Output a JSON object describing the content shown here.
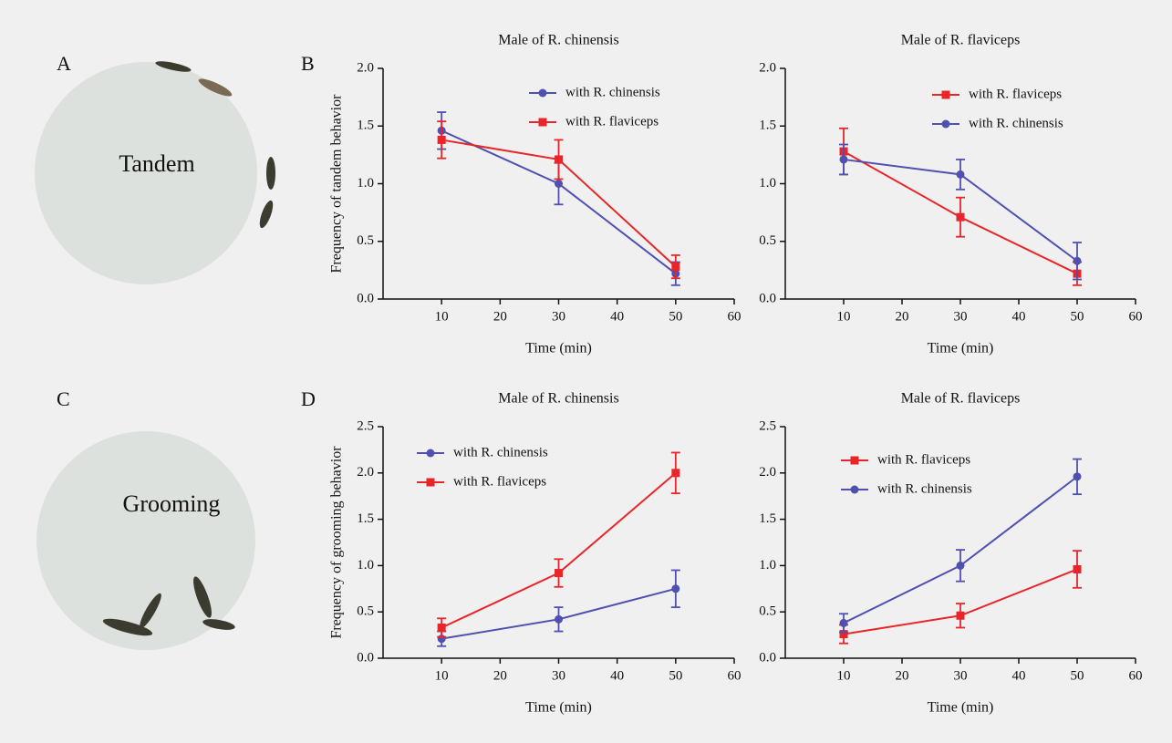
{
  "panels": {
    "labels": [
      "A",
      "B",
      "C",
      "D"
    ]
  },
  "photos": {
    "labels": [
      "Tandem",
      "Grooming"
    ]
  },
  "chart_data": [
    {
      "type": "line",
      "title": "Male of R. chinensis",
      "x_label": "Time (min)",
      "y_label": "Frequency of tandem behavior",
      "x": [
        10,
        30,
        50
      ],
      "xlim": [
        0,
        60
      ],
      "xticks": [
        10,
        20,
        30,
        40,
        50,
        60
      ],
      "ylim": [
        0,
        2
      ],
      "yticks": [
        {
          "value": 0,
          "label": "0.0"
        },
        0.5,
        {
          "value": 1,
          "label": "1.0"
        },
        1.5,
        {
          "value": 2,
          "label": "2.0"
        }
      ],
      "series": [
        {
          "name": "with R. chinensis",
          "color": "#4f50b0",
          "marker": "circle",
          "values": [
            1.46,
            1.0,
            0.22
          ],
          "errors": [
            0.16,
            0.18,
            0.1
          ]
        },
        {
          "name": "with R. flaviceps",
          "color": "#e8262a",
          "marker": "square",
          "values": [
            1.38,
            1.21,
            0.28
          ],
          "errors": [
            0.16,
            0.17,
            0.1
          ]
        }
      ]
    },
    {
      "type": "line",
      "title": "Male of R. flaviceps",
      "x_label": "Time (min)",
      "x": [
        10,
        30,
        50
      ],
      "xlim": [
        0,
        60
      ],
      "xticks": [
        10,
        20,
        30,
        40,
        50,
        60
      ],
      "ylim": [
        0,
        2
      ],
      "yticks": [
        {
          "value": 0,
          "label": "0.0"
        },
        0.5,
        {
          "value": 1,
          "label": "1.0"
        },
        1.5,
        {
          "value": 2,
          "label": "2.0"
        }
      ],
      "series": [
        {
          "name": "with R. flaviceps",
          "color": "#e8262a",
          "marker": "square",
          "values": [
            1.28,
            0.71,
            0.22
          ],
          "errors": [
            0.2,
            0.17,
            0.1
          ]
        },
        {
          "name": "with R. chinensis",
          "color": "#4f50b0",
          "marker": "circle",
          "values": [
            1.21,
            1.08,
            0.33
          ],
          "errors": [
            0.13,
            0.13,
            0.16
          ]
        }
      ]
    },
    {
      "type": "line",
      "title": "Male of R. chinensis",
      "x_label": "Time (min)",
      "y_label": "Frequency of grooming behavior",
      "x": [
        10,
        30,
        50
      ],
      "xlim": [
        0,
        60
      ],
      "xticks": [
        10,
        20,
        30,
        40,
        50,
        60
      ],
      "ylim": [
        0,
        2.5
      ],
      "yticks": [
        {
          "value": 0,
          "label": "0.0"
        },
        0.5,
        {
          "value": 1,
          "label": "1.0"
        },
        1.5,
        {
          "value": 2,
          "label": "2.0"
        },
        2.5
      ],
      "series": [
        {
          "name": "with R. chinensis",
          "color": "#4f50b0",
          "marker": "circle",
          "values": [
            0.21,
            0.42,
            0.75
          ],
          "errors": [
            0.08,
            0.13,
            0.2
          ]
        },
        {
          "name": "with R. flaviceps",
          "color": "#e8262a",
          "marker": "square",
          "values": [
            0.33,
            0.92,
            2.0
          ],
          "errors": [
            0.1,
            0.15,
            0.22
          ]
        }
      ]
    },
    {
      "type": "line",
      "title": "Male of R. flaviceps",
      "x_label": "Time (min)",
      "x": [
        10,
        30,
        50
      ],
      "xlim": [
        0,
        60
      ],
      "xticks": [
        10,
        20,
        30,
        40,
        50,
        60
      ],
      "ylim": [
        0,
        2.5
      ],
      "yticks": [
        {
          "value": 0,
          "label": "0.0"
        },
        0.5,
        {
          "value": 1,
          "label": "1.0"
        },
        1.5,
        {
          "value": 2,
          "label": "2.0"
        },
        2.5
      ],
      "series": [
        {
          "name": "with R. flaviceps",
          "color": "#e8262a",
          "marker": "square",
          "values": [
            0.26,
            0.46,
            0.96
          ],
          "errors": [
            0.1,
            0.13,
            0.2
          ]
        },
        {
          "name": "with R. chinensis",
          "color": "#4f50b0",
          "marker": "circle",
          "values": [
            0.38,
            1.0,
            1.96
          ],
          "errors": [
            0.1,
            0.17,
            0.19
          ]
        }
      ]
    }
  ]
}
